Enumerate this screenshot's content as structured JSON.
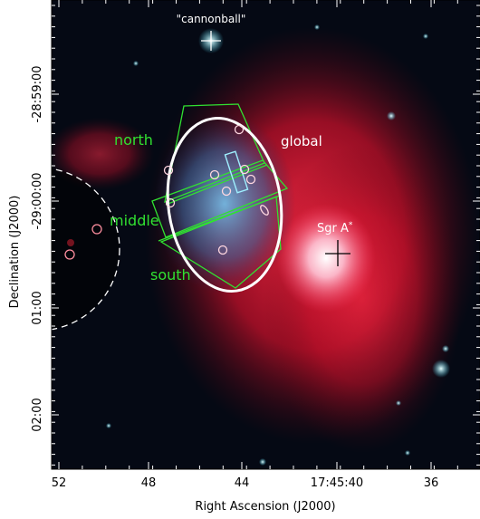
{
  "figure": {
    "xlabel": "Right Ascension (J2000)",
    "ylabel": "Declination (J2000)",
    "x_tick_labels": [
      "52",
      "48",
      "44",
      "17:45:40",
      "36"
    ],
    "y_tick_labels": [
      "-28:59:00",
      "-29:00:00",
      "01:00",
      "02:00"
    ]
  },
  "annotations": {
    "cannonball": "\"cannonball\"",
    "global": "global",
    "north": "north",
    "middle": "middle",
    "south": "south",
    "sgra": "Sgr A",
    "sgra_sup": "*"
  },
  "colors": {
    "image_bg": "#050914",
    "xray_red": "#e8122c",
    "xray_cyan": "#3fa7d6",
    "region_green": "#31e131",
    "region_white": "#ffffff",
    "region_cyan": "#9ff0ff"
  }
}
